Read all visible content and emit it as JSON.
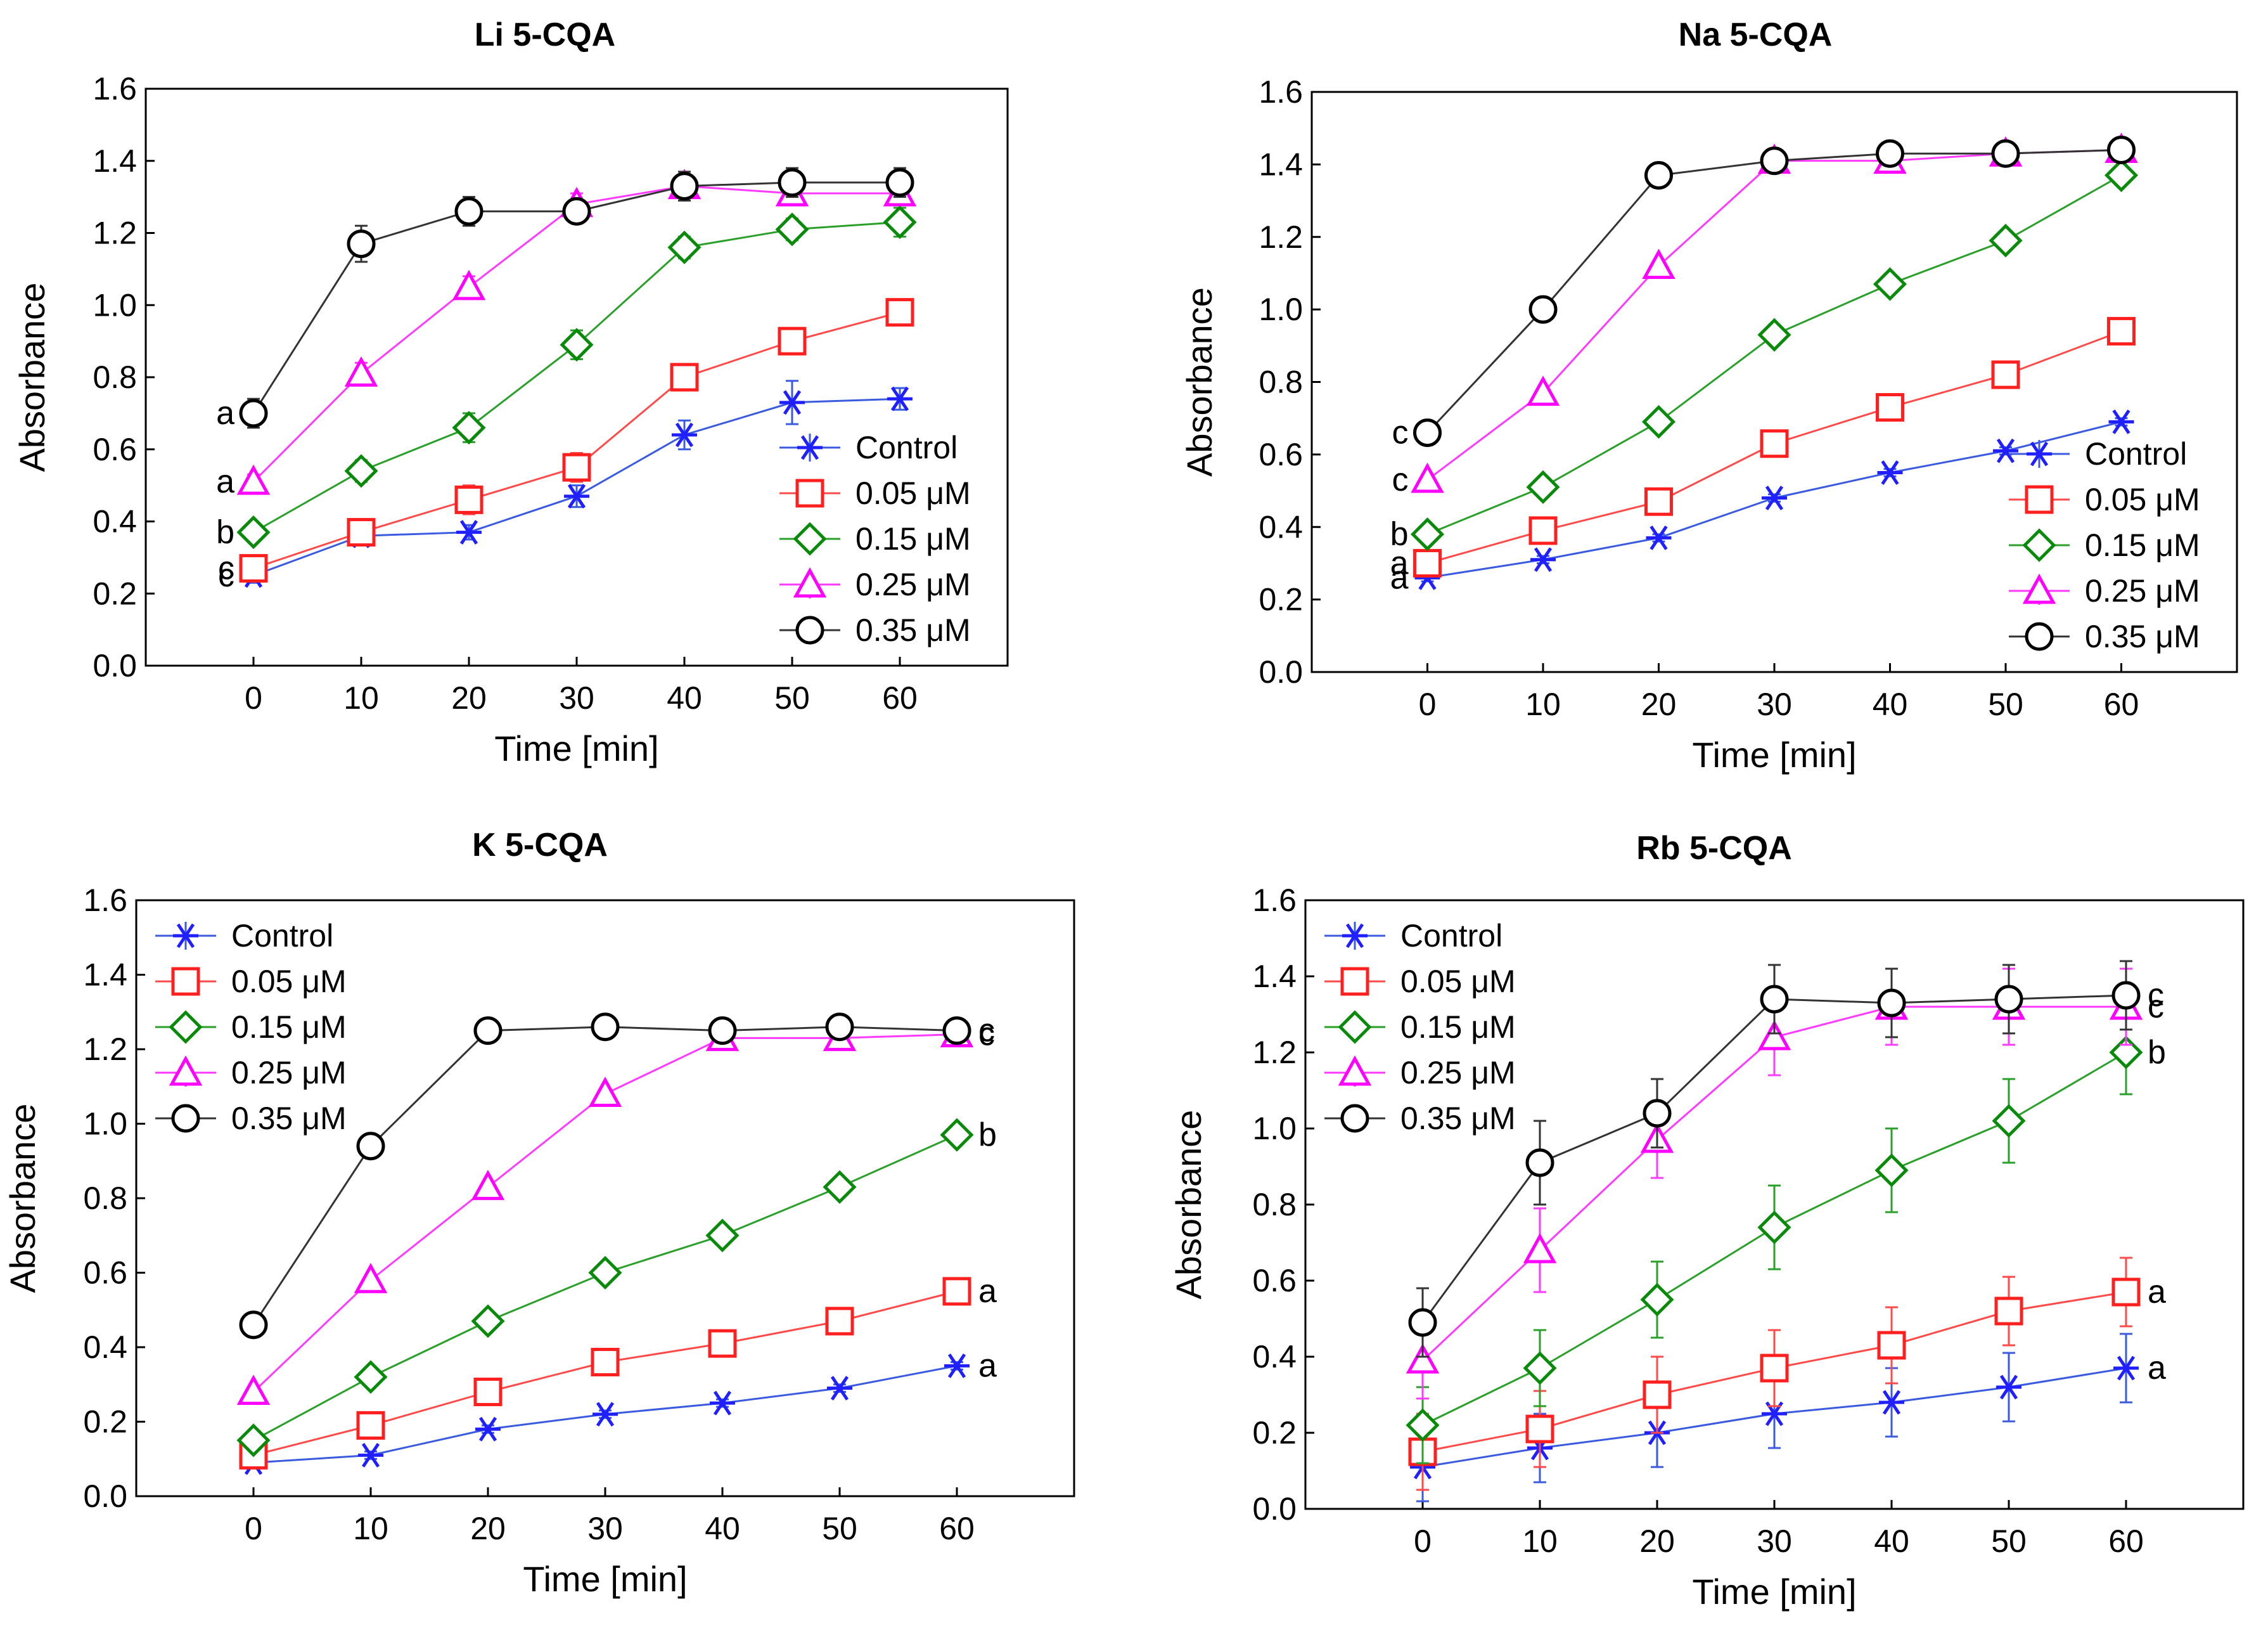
{
  "figure": {
    "colors": {
      "Control": "#1f1fff",
      "0.05 μM": "#ff1f1f",
      "0.15 μM": "#0a8a0a",
      "0.25 μM": "#ff00ff",
      "0.35 μM": "#000000",
      "Control_line": "#3a5adf",
      "0.05 μM_line": "#ff4a4a",
      "0.15 μM_line": "#2aa02a",
      "0.25 μM_line": "#ff3aff",
      "0.35 μM_line": "#333333"
    },
    "markers": {
      "Control": "asterisk",
      "0.05 μM": "square",
      "0.15 μM": "diamond",
      "0.25 μM": "triangle",
      "0.35 μM": "circle"
    }
  },
  "chart_data": [
    {
      "type": "line",
      "title": "Li 5-CQA",
      "xlabel": "Time [min]",
      "ylabel": "Absorbance",
      "xlim": [
        -10,
        70
      ],
      "ylim": [
        0.0,
        1.6
      ],
      "xticks": [
        0,
        10,
        20,
        30,
        40,
        50,
        60
      ],
      "xtick_labels": [
        "0",
        "10",
        "20",
        "30",
        "40",
        "50",
        "60"
      ],
      "yticks": [
        0.0,
        0.2,
        0.4,
        0.6,
        0.8,
        1.0,
        1.2,
        1.4,
        1.6
      ],
      "ytick_labels": [
        "0.0",
        "0.2",
        "0.4",
        "0.6",
        "0.8",
        "1.0",
        "1.2",
        "1.4",
        "1.6"
      ],
      "x": [
        0,
        10,
        20,
        30,
        40,
        50,
        60
      ],
      "legend_position": "bottom-right",
      "letters_side": "left",
      "series": [
        {
          "name": "Control",
          "values": [
            0.25,
            0.36,
            0.37,
            0.47,
            0.64,
            0.73,
            0.74
          ],
          "errors": [
            0.02,
            0.02,
            0.02,
            0.03,
            0.04,
            0.06,
            0.03
          ],
          "letter": "c"
        },
        {
          "name": "0.05 μM",
          "values": [
            0.27,
            0.37,
            0.46,
            0.55,
            0.8,
            0.9,
            0.98
          ],
          "errors": [
            0.02,
            0.03,
            0.04,
            0.04,
            0.03,
            0.03,
            0.03
          ],
          "letter": "c"
        },
        {
          "name": "0.15 μM",
          "values": [
            0.37,
            0.54,
            0.66,
            0.89,
            1.16,
            1.21,
            1.23
          ],
          "errors": [
            0.02,
            0.03,
            0.04,
            0.04,
            0.03,
            0.03,
            0.04
          ],
          "letter": "b"
        },
        {
          "name": "0.25 μM",
          "values": [
            0.51,
            0.81,
            1.05,
            1.28,
            1.33,
            1.31,
            1.31
          ],
          "errors": [
            0.02,
            0.03,
            0.03,
            0.03,
            0.03,
            0.03,
            0.03
          ],
          "letter": "a"
        },
        {
          "name": "0.35 μM",
          "values": [
            0.7,
            1.17,
            1.26,
            1.26,
            1.33,
            1.34,
            1.34
          ],
          "errors": [
            0.04,
            0.05,
            0.04,
            0.03,
            0.04,
            0.04,
            0.04
          ],
          "letter": "a"
        }
      ]
    },
    {
      "type": "line",
      "title": "Na 5-CQA",
      "xlabel": "Time [min]",
      "ylabel": "Absorbance",
      "xlim": [
        -10,
        70
      ],
      "ylim": [
        0.0,
        1.6
      ],
      "xticks": [
        0,
        10,
        20,
        30,
        40,
        50,
        60
      ],
      "xtick_labels": [
        "0",
        "10",
        "20",
        "30",
        "40",
        "50",
        "60"
      ],
      "yticks": [
        0.0,
        0.2,
        0.4,
        0.6,
        0.8,
        1.0,
        1.2,
        1.4,
        1.6
      ],
      "ytick_labels": [
        "0.0",
        "0.2",
        "0.4",
        "0.6",
        "0.8",
        "1.0",
        "1.2",
        "1.4",
        "1.6"
      ],
      "x": [
        0,
        10,
        20,
        30,
        40,
        50,
        60
      ],
      "legend_position": "bottom-right",
      "letters_side": "left",
      "series": [
        {
          "name": "Control",
          "values": [
            0.26,
            0.31,
            0.37,
            0.48,
            0.55,
            0.61,
            0.69
          ],
          "errors": [
            0.01,
            0.01,
            0.01,
            0.01,
            0.01,
            0.01,
            0.01
          ],
          "letter": "a"
        },
        {
          "name": "0.05 μM",
          "values": [
            0.3,
            0.39,
            0.47,
            0.63,
            0.73,
            0.82,
            0.94
          ],
          "errors": [
            0.02,
            0.02,
            0.02,
            0.02,
            0.02,
            0.02,
            0.02
          ],
          "letter": "a"
        },
        {
          "name": "0.15 μM",
          "values": [
            0.38,
            0.51,
            0.69,
            0.93,
            1.07,
            1.19,
            1.37
          ],
          "errors": [
            0.01,
            0.01,
            0.01,
            0.01,
            0.01,
            0.01,
            0.01
          ],
          "letter": "b"
        },
        {
          "name": "0.25 μM",
          "values": [
            0.53,
            0.77,
            1.12,
            1.41,
            1.41,
            1.43,
            1.44
          ],
          "errors": [
            0.01,
            0.01,
            0.01,
            0.01,
            0.01,
            0.01,
            0.01
          ],
          "letter": "c"
        },
        {
          "name": "0.35 μM",
          "values": [
            0.66,
            1.0,
            1.37,
            1.41,
            1.43,
            1.43,
            1.44
          ],
          "errors": [
            0.02,
            0.02,
            0.02,
            0.02,
            0.02,
            0.02,
            0.02
          ],
          "letter": "c"
        }
      ]
    },
    {
      "type": "line",
      "title": "K 5-CQA",
      "xlabel": "Time [min]",
      "ylabel": "Absorbance",
      "xlim": [
        -10,
        70
      ],
      "ylim": [
        0.0,
        1.6
      ],
      "xticks": [
        0,
        10,
        20,
        30,
        40,
        50,
        60
      ],
      "xtick_labels": [
        "0",
        "10",
        "20",
        "30",
        "40",
        "50",
        "60"
      ],
      "yticks": [
        0.0,
        0.2,
        0.4,
        0.6,
        0.8,
        1.0,
        1.2,
        1.4,
        1.6
      ],
      "ytick_labels": [
        "0.0",
        "0.2",
        "0.4",
        "0.6",
        "0.8",
        "1.0",
        "1.2",
        "1.4",
        "1.6"
      ],
      "x": [
        0,
        10,
        20,
        30,
        40,
        50,
        60
      ],
      "legend_position": "top-left",
      "letters_side": "right",
      "series": [
        {
          "name": "Control",
          "values": [
            0.09,
            0.11,
            0.18,
            0.22,
            0.25,
            0.29,
            0.35
          ],
          "errors": [
            0.01,
            0.01,
            0.01,
            0.01,
            0.01,
            0.01,
            0.01
          ],
          "letter": "a"
        },
        {
          "name": "0.05 μM",
          "values": [
            0.11,
            0.19,
            0.28,
            0.36,
            0.41,
            0.47,
            0.55
          ],
          "errors": [
            0.02,
            0.02,
            0.02,
            0.02,
            0.02,
            0.02,
            0.02
          ],
          "letter": "a"
        },
        {
          "name": "0.15 μM",
          "values": [
            0.15,
            0.32,
            0.47,
            0.6,
            0.7,
            0.83,
            0.97
          ],
          "errors": [
            0.01,
            0.01,
            0.01,
            0.01,
            0.01,
            0.01,
            0.01
          ],
          "letter": "b"
        },
        {
          "name": "0.25 μM",
          "values": [
            0.28,
            0.58,
            0.83,
            1.08,
            1.23,
            1.23,
            1.24
          ],
          "errors": [
            0.01,
            0.01,
            0.01,
            0.01,
            0.01,
            0.01,
            0.01
          ],
          "letter": "c"
        },
        {
          "name": "0.35 μM",
          "values": [
            0.46,
            0.94,
            1.25,
            1.26,
            1.25,
            1.26,
            1.25
          ],
          "errors": [
            0.01,
            0.01,
            0.01,
            0.01,
            0.01,
            0.01,
            0.01
          ],
          "letter": "c"
        }
      ]
    },
    {
      "type": "line",
      "title": "Rb 5-CQA",
      "xlabel": "Time [min]",
      "ylabel": "Absorbance",
      "xlim": [
        -10,
        70
      ],
      "ylim": [
        0.0,
        1.6
      ],
      "xticks": [
        0,
        10,
        20,
        30,
        40,
        50,
        60
      ],
      "xtick_labels": [
        "0",
        "10",
        "20",
        "30",
        "40",
        "50",
        "60"
      ],
      "yticks": [
        0.0,
        0.2,
        0.4,
        0.6,
        0.8,
        1.0,
        1.2,
        1.4,
        1.6
      ],
      "ytick_labels": [
        "0.0",
        "0.2",
        "0.4",
        "0.6",
        "0.8",
        "1.0",
        "1.2",
        "1.4",
        "1.6"
      ],
      "x": [
        0,
        10,
        20,
        30,
        40,
        50,
        60
      ],
      "legend_position": "top-left",
      "letters_side": "right",
      "series": [
        {
          "name": "Control",
          "values": [
            0.11,
            0.16,
            0.2,
            0.25,
            0.28,
            0.32,
            0.37
          ],
          "errors": [
            0.09,
            0.09,
            0.09,
            0.09,
            0.09,
            0.09,
            0.09
          ],
          "letter": "a"
        },
        {
          "name": "0.05 μM",
          "values": [
            0.15,
            0.21,
            0.3,
            0.37,
            0.43,
            0.52,
            0.57
          ],
          "errors": [
            0.1,
            0.1,
            0.1,
            0.1,
            0.1,
            0.09,
            0.09
          ],
          "letter": "a"
        },
        {
          "name": "0.15 μM",
          "values": [
            0.22,
            0.37,
            0.55,
            0.74,
            0.89,
            1.02,
            1.2
          ],
          "errors": [
            0.1,
            0.1,
            0.1,
            0.11,
            0.11,
            0.11,
            0.11
          ],
          "letter": "b"
        },
        {
          "name": "0.25 μM",
          "values": [
            0.39,
            0.68,
            0.97,
            1.24,
            1.32,
            1.32,
            1.32
          ],
          "errors": [
            0.1,
            0.11,
            0.1,
            0.1,
            0.1,
            0.1,
            0.1
          ],
          "letter": "c"
        },
        {
          "name": "0.35 μM",
          "values": [
            0.49,
            0.91,
            1.04,
            1.34,
            1.33,
            1.34,
            1.35
          ],
          "errors": [
            0.09,
            0.11,
            0.09,
            0.09,
            0.09,
            0.09,
            0.09
          ],
          "letter": "c"
        }
      ]
    }
  ]
}
